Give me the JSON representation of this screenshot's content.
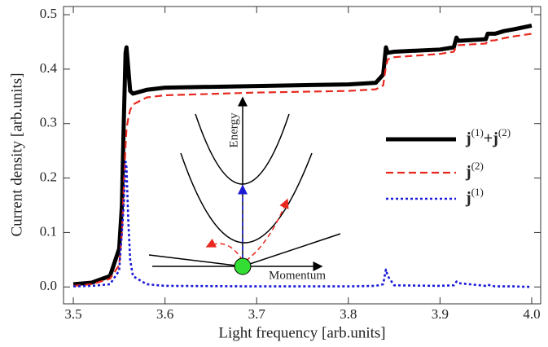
{
  "chart_data": {
    "type": "line",
    "x_label": "Light frequency [arb.units]",
    "y_label": "Current density [arb.units]",
    "x": [
      3.5,
      3.52,
      3.54,
      3.55,
      3.553,
      3.555,
      3.557,
      3.558,
      3.56,
      3.562,
      3.565,
      3.58,
      3.6,
      3.7,
      3.8,
      3.83,
      3.838,
      3.841,
      3.843,
      3.85,
      3.9,
      3.915,
      3.918,
      3.92,
      3.95,
      3.952,
      3.96,
      3.97,
      3.98,
      4.0
    ],
    "series": [
      {
        "name": "j(1)+j(2)",
        "color": "#000000",
        "style": "solid",
        "values": [
          0.005,
          0.008,
          0.02,
          0.07,
          0.15,
          0.3,
          0.43,
          0.44,
          0.4,
          0.36,
          0.355,
          0.362,
          0.366,
          0.369,
          0.372,
          0.375,
          0.39,
          0.44,
          0.43,
          0.432,
          0.436,
          0.44,
          0.458,
          0.452,
          0.455,
          0.465,
          0.465,
          0.47,
          0.473,
          0.48
        ]
      },
      {
        "name": "j(2)",
        "color": "#e8281e",
        "style": "dashed",
        "values": [
          0.002,
          0.005,
          0.015,
          0.04,
          0.1,
          0.18,
          0.26,
          0.29,
          0.31,
          0.325,
          0.335,
          0.348,
          0.352,
          0.357,
          0.36,
          0.363,
          0.37,
          0.405,
          0.418,
          0.422,
          0.428,
          0.432,
          0.443,
          0.444,
          0.447,
          0.452,
          0.453,
          0.457,
          0.46,
          0.465
        ]
      },
      {
        "name": "j(1)",
        "color": "#1a1ad6",
        "style": "dotted",
        "values": [
          0.001,
          0.002,
          0.005,
          0.03,
          0.1,
          0.15,
          0.23,
          0.22,
          0.12,
          0.05,
          0.02,
          0.005,
          0.002,
          0.001,
          0.001,
          0.002,
          0.005,
          0.032,
          0.02,
          0.003,
          0.002,
          0.003,
          0.01,
          0.007,
          0.002,
          0.004,
          0.001,
          0.001,
          0.001,
          0
        ]
      }
    ],
    "xlim": [
      3.4893,
      4.0098
    ],
    "ylim": [
      -0.031,
      0.515
    ],
    "xticks": [
      3.5,
      3.6,
      3.7,
      3.8,
      3.9,
      {
        "value": 4.0,
        "label": "4.0"
      }
    ],
    "yticks": [
      {
        "value": 0,
        "label": "0.0"
      },
      0.1,
      0.2,
      0.3,
      0.4,
      0.5
    ],
    "annotations": [
      "Energy",
      "Momentum"
    ]
  }
}
